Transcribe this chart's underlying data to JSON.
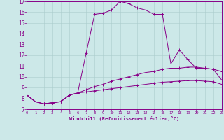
{
  "title": "",
  "xlabel": "Windchill (Refroidissement éolien,°C)",
  "ylabel": "",
  "bg_color": "#cce8e8",
  "line_color": "#880088",
  "grid_color": "#aacccc",
  "xlim": [
    0,
    23
  ],
  "ylim": [
    7,
    17
  ],
  "xticks": [
    0,
    1,
    2,
    3,
    4,
    5,
    6,
    7,
    8,
    9,
    10,
    11,
    12,
    13,
    14,
    15,
    16,
    17,
    18,
    19,
    20,
    21,
    22,
    23
  ],
  "yticks": [
    7,
    8,
    9,
    10,
    11,
    12,
    13,
    14,
    15,
    16,
    17
  ],
  "line1_x": [
    0,
    1,
    2,
    3,
    4,
    5,
    6,
    7,
    8,
    9,
    10,
    11,
    12,
    13,
    14,
    15,
    16,
    17,
    18,
    19,
    20,
    21,
    22,
    23
  ],
  "line1_y": [
    8.3,
    7.7,
    7.5,
    7.6,
    7.7,
    8.3,
    8.5,
    12.2,
    15.8,
    15.9,
    16.2,
    17.0,
    16.8,
    16.4,
    16.2,
    15.8,
    15.8,
    11.2,
    12.5,
    11.6,
    10.8,
    10.8,
    10.7,
    10.5
  ],
  "line2_x": [
    0,
    1,
    2,
    3,
    4,
    5,
    6,
    7,
    8,
    9,
    10,
    11,
    12,
    13,
    14,
    15,
    16,
    17,
    18,
    19,
    20,
    21,
    22,
    23
  ],
  "line2_y": [
    8.3,
    7.7,
    7.5,
    7.6,
    7.7,
    8.3,
    8.5,
    8.8,
    9.1,
    9.3,
    9.6,
    9.8,
    10.0,
    10.2,
    10.4,
    10.5,
    10.7,
    10.8,
    10.8,
    10.9,
    10.9,
    10.8,
    10.7,
    9.7
  ],
  "line3_x": [
    0,
    1,
    2,
    3,
    4,
    5,
    6,
    7,
    8,
    9,
    10,
    11,
    12,
    13,
    14,
    15,
    16,
    17,
    18,
    19,
    20,
    21,
    22,
    23
  ],
  "line3_y": [
    8.3,
    7.7,
    7.5,
    7.6,
    7.7,
    8.3,
    8.5,
    8.6,
    8.7,
    8.8,
    8.9,
    9.0,
    9.1,
    9.2,
    9.3,
    9.4,
    9.5,
    9.55,
    9.6,
    9.65,
    9.65,
    9.6,
    9.55,
    9.3
  ]
}
